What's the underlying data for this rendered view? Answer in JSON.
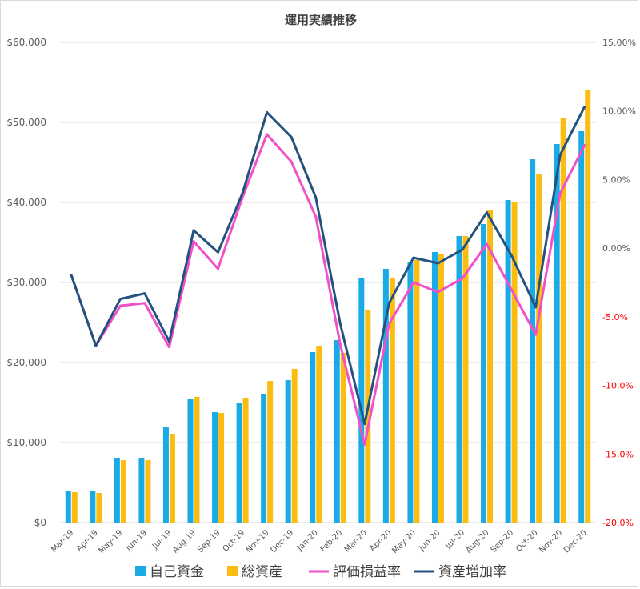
{
  "chart_data": {
    "type": "bar",
    "title": "運用実績推移",
    "categories": [
      "Mar-19",
      "Apr-19",
      "May-19",
      "Jun-19",
      "Jul-19",
      "Aug-19",
      "Sep-19",
      "Oct-19",
      "Nov-19",
      "Dec-19",
      "Jan-20",
      "Feb-20",
      "Mar-20",
      "Apr-20",
      "May-20",
      "Jun-20",
      "Jul-20",
      "Aug-20",
      "Sep-20",
      "Oct-20",
      "Nov-20",
      "Dec-20"
    ],
    "y_left": {
      "min": 0,
      "max": 60000,
      "step": 10000,
      "tick_labels": [
        "$0",
        "$10,000",
        "$20,000",
        "$30,000",
        "$40,000",
        "$50,000",
        "$60,000"
      ]
    },
    "y_right": {
      "min": -0.2,
      "max": 0.15,
      "step": 0.05,
      "tick_labels": [
        "-20.0%",
        "-15.0%",
        "-10.0%",
        "-5.0%",
        "0.00%",
        "5.00%",
        "10.00%",
        "15.00%"
      ]
    },
    "grid": true,
    "legend_position": "bottom",
    "bar_series": [
      {
        "name": "自己資金",
        "color": "#1aabe6",
        "values": [
          3900,
          3900,
          8100,
          8100,
          11900,
          15500,
          13800,
          14900,
          16100,
          17800,
          21300,
          22800,
          30500,
          31700,
          32500,
          33800,
          35800,
          37300,
          40300,
          45400,
          47300,
          48900
        ]
      },
      {
        "name": "総資産",
        "color": "#fcbd12",
        "values": [
          3800,
          3700,
          7800,
          7800,
          11100,
          15700,
          13700,
          15600,
          17700,
          19200,
          22100,
          21200,
          26600,
          30500,
          32800,
          33500,
          35800,
          39100,
          40100,
          43500,
          50500,
          54000
        ]
      }
    ],
    "line_series": [
      {
        "name": "評価損益率",
        "color": "#f050c8",
        "values": [
          -0.02,
          -0.071,
          -0.042,
          -0.04,
          -0.072,
          0.005,
          -0.015,
          0.037,
          0.083,
          0.063,
          0.023,
          -0.07,
          -0.143,
          -0.055,
          -0.025,
          -0.032,
          -0.022,
          0.003,
          -0.03,
          -0.063,
          0.04,
          0.075
        ]
      },
      {
        "name": "資産増加率",
        "color": "#24527f",
        "values": [
          -0.02,
          -0.071,
          -0.037,
          -0.033,
          -0.068,
          0.013,
          -0.003,
          0.04,
          0.099,
          0.081,
          0.037,
          -0.055,
          -0.128,
          -0.04,
          -0.007,
          -0.011,
          -0.001,
          0.026,
          -0.005,
          -0.043,
          0.068,
          0.103
        ]
      }
    ]
  }
}
